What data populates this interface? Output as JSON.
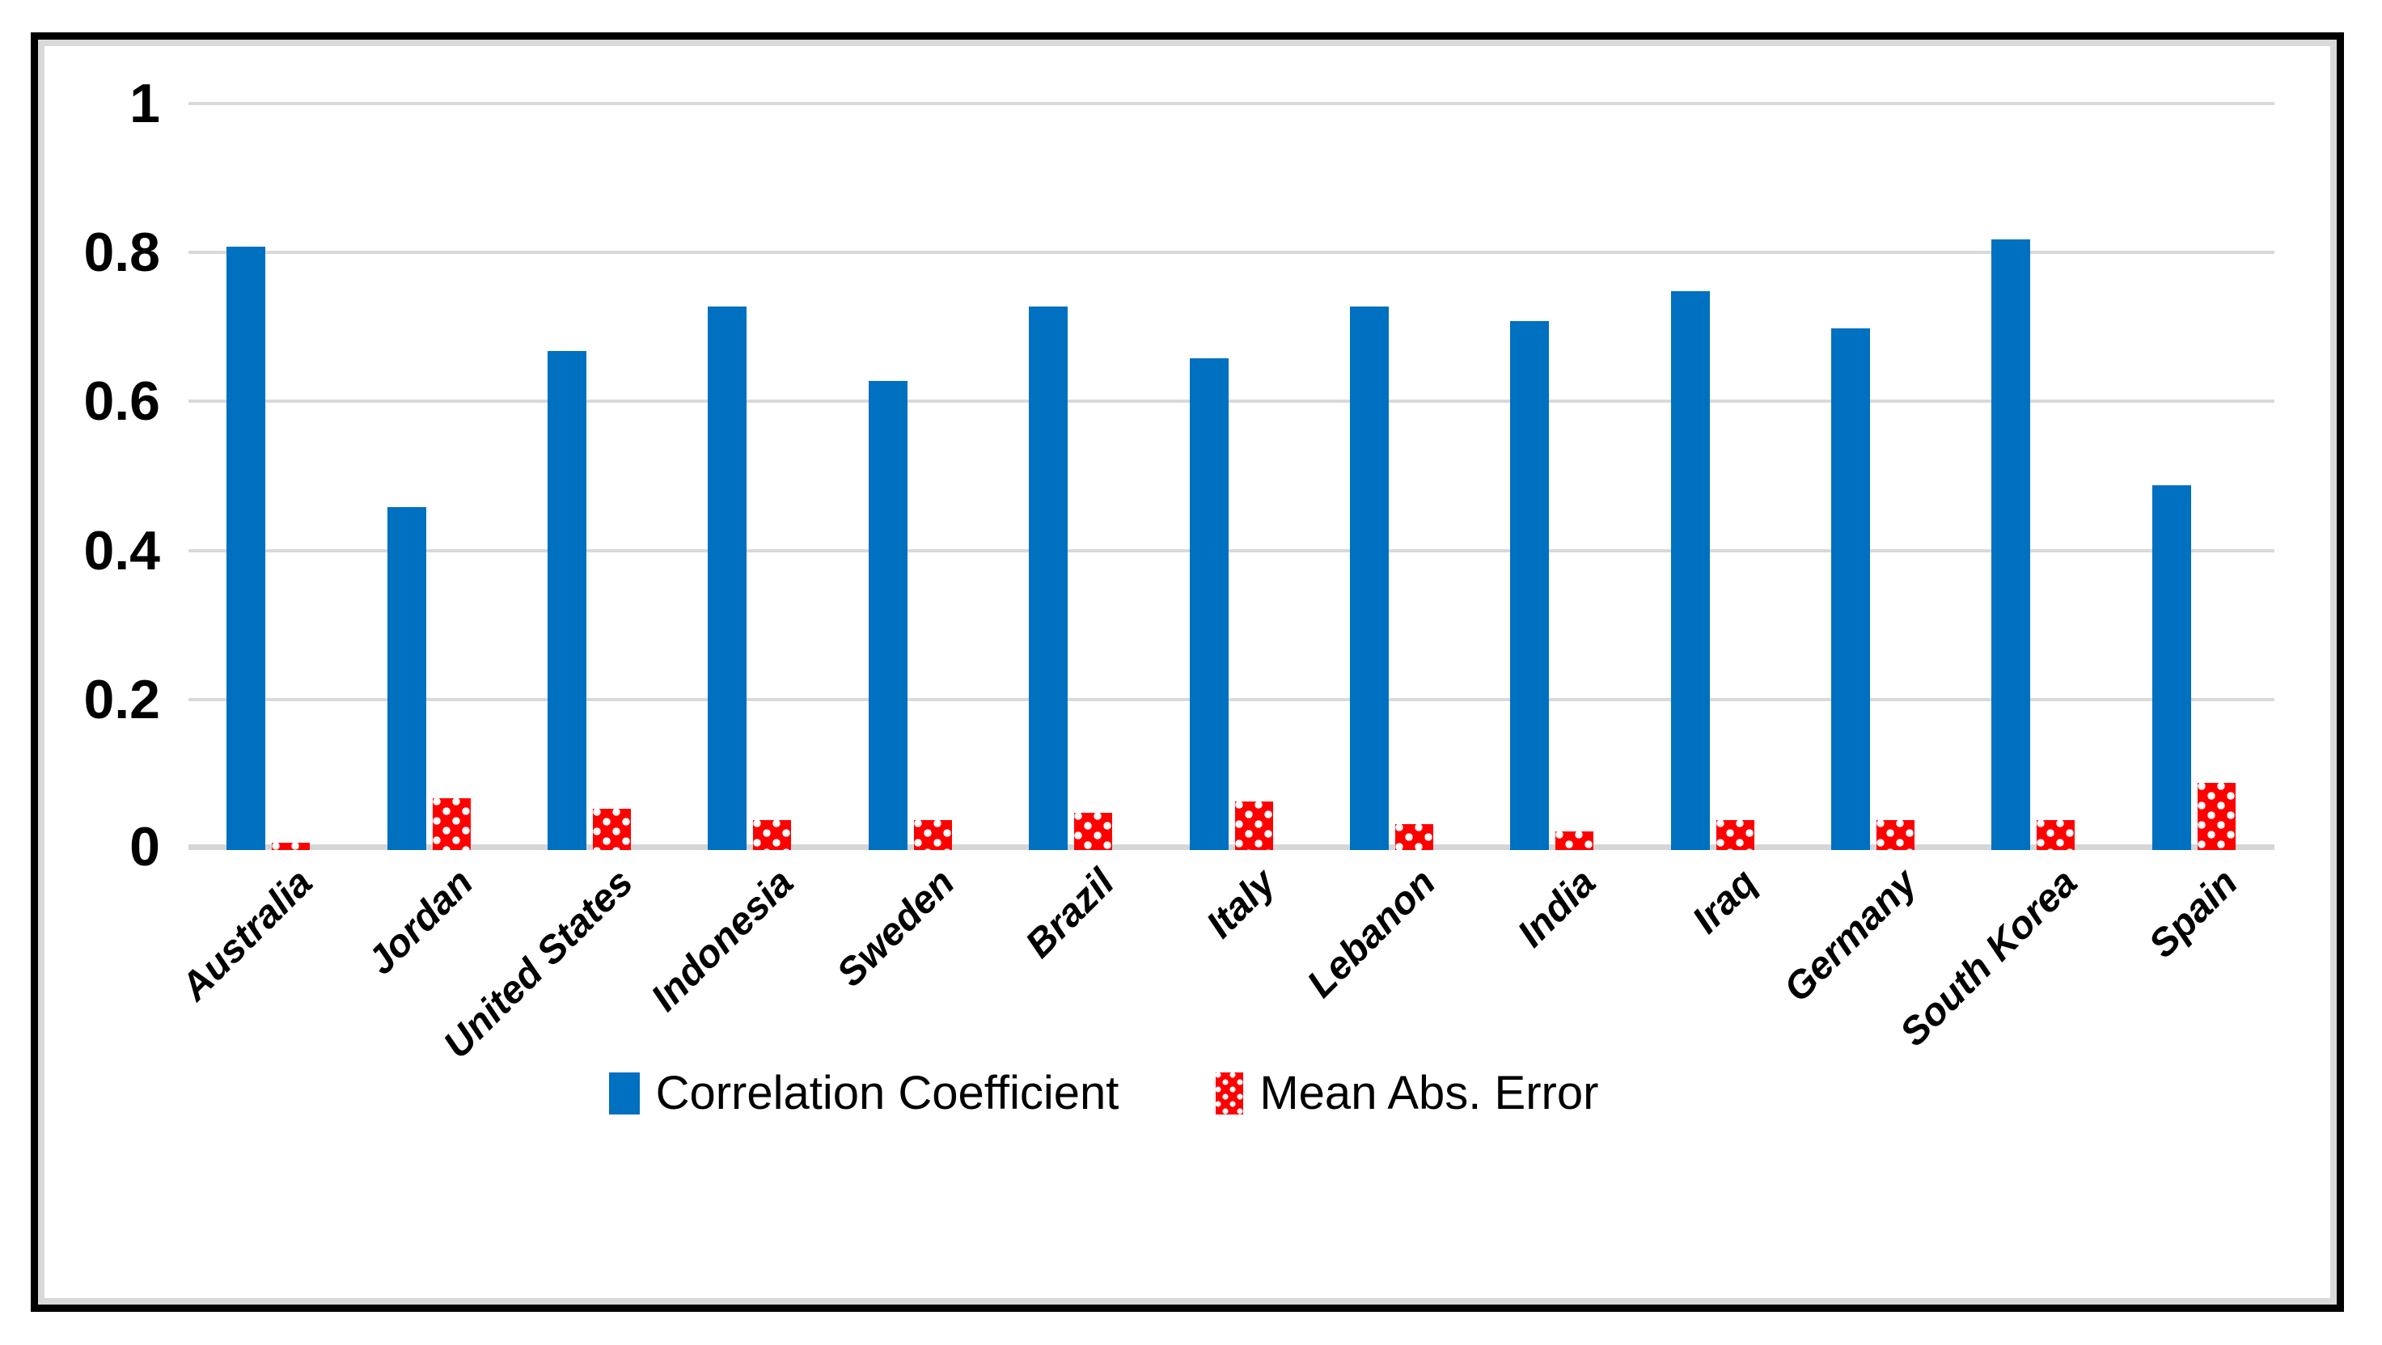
{
  "figure": {
    "background": "#FFFFFF",
    "outer_border_color": "#000000",
    "inner_border_color": "#D9D9D9"
  },
  "chart_data": {
    "type": "bar",
    "categories": [
      "Australia",
      "Jordan",
      "United States",
      "Indonesia",
      "Sweden",
      "Brazil",
      "Italy",
      "Lebanon",
      "India",
      "Iraq",
      "Germany",
      "South Korea",
      "Spain"
    ],
    "series": [
      {
        "name": "Correlation Coefficient",
        "color": "#0070C0",
        "pattern": "solid",
        "values": [
          0.81,
          0.46,
          0.67,
          0.73,
          0.63,
          0.73,
          0.66,
          0.73,
          0.71,
          0.75,
          0.7,
          0.82,
          0.49
        ]
      },
      {
        "name": "Mean Abs. Error",
        "color": "#FF0000",
        "pattern": "white-dots-on-red",
        "values": [
          0.01,
          0.07,
          0.055,
          0.04,
          0.04,
          0.05,
          0.065,
          0.035,
          0.025,
          0.04,
          0.04,
          0.04,
          0.09
        ]
      }
    ],
    "ylim": [
      0,
      1
    ],
    "yticks": [
      0,
      0.2,
      0.4,
      0.6,
      0.8,
      1
    ],
    "ytick_labels": [
      "0",
      "0.2",
      "0.4",
      "0.6",
      "0.8",
      "1"
    ],
    "grid": "horizontal",
    "gridline_color": "#D9D9D9",
    "legend_position": "bottom-center",
    "xlabel_rotation_deg": -45
  }
}
